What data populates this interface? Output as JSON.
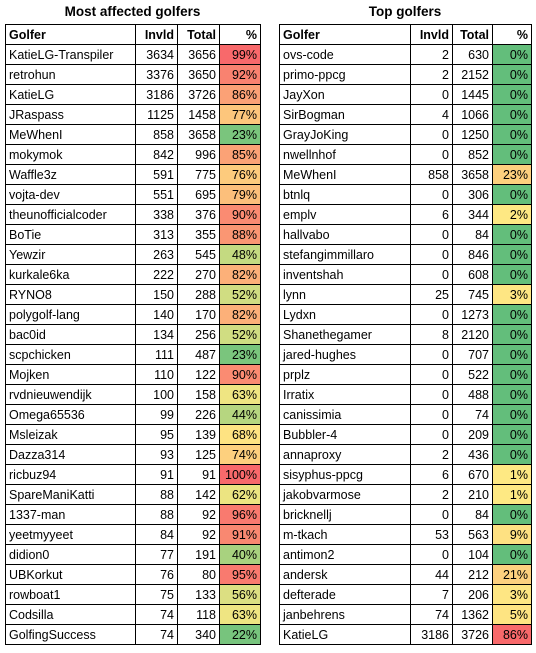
{
  "left": {
    "title": "Most affected golfers",
    "headers": [
      "Golfer",
      "Invld",
      "Total",
      "%"
    ],
    "rows": [
      [
        "KatieLG-Transpiler",
        "3634",
        "3656",
        "99%",
        "#f8696b"
      ],
      [
        "retrohun",
        "3376",
        "3650",
        "92%",
        "#f98270"
      ],
      [
        "KatieLG",
        "3186",
        "3726",
        "86%",
        "#fba176"
      ],
      [
        "JRaspass",
        "1125",
        "1458",
        "77%",
        "#fdc67c"
      ],
      [
        "MeWhenI",
        "858",
        "3658",
        "23%",
        "#7ac57d"
      ],
      [
        "mokymok",
        "842",
        "996",
        "85%",
        "#fba276"
      ],
      [
        "Waffle3z",
        "591",
        "775",
        "76%",
        "#fdcb7d"
      ],
      [
        "vojta-dev",
        "551",
        "695",
        "79%",
        "#fcbf7b"
      ],
      [
        "theunofficialcoder",
        "338",
        "376",
        "90%",
        "#fa8b72"
      ],
      [
        "BoTie",
        "313",
        "355",
        "88%",
        "#fa9673"
      ],
      [
        "Yewzir",
        "263",
        "545",
        "48%",
        "#c4da81"
      ],
      [
        "kurkale6ka",
        "222",
        "270",
        "82%",
        "#fcb079"
      ],
      [
        "RYNO8",
        "150",
        "288",
        "52%",
        "#d0dd82"
      ],
      [
        "polygolf-lang",
        "140",
        "170",
        "82%",
        "#fcb079"
      ],
      [
        "bac0id",
        "134",
        "256",
        "52%",
        "#d0dd82"
      ],
      [
        "scpchicken",
        "111",
        "487",
        "23%",
        "#7ac57d"
      ],
      [
        "Mojken",
        "110",
        "122",
        "90%",
        "#fa8b72"
      ],
      [
        "rvdnieuwendijk",
        "100",
        "158",
        "63%",
        "#efe582"
      ],
      [
        "Omega65536",
        "99",
        "226",
        "44%",
        "#b6d680"
      ],
      [
        "Msleizak",
        "95",
        "139",
        "68%",
        "#fee382"
      ],
      [
        "Dazza314",
        "93",
        "125",
        "74%",
        "#fdd07e"
      ],
      [
        "ricbuz94",
        "91",
        "91",
        "100%",
        "#f8696b"
      ],
      [
        "SpareManiKatti",
        "88",
        "142",
        "62%",
        "#ece481"
      ],
      [
        "1337-man",
        "88",
        "92",
        "96%",
        "#f97a6f"
      ],
      [
        "yeetmyyeet",
        "84",
        "92",
        "91%",
        "#f98871"
      ],
      [
        "didion0",
        "77",
        "191",
        "40%",
        "#a8d27f"
      ],
      [
        "UBKorkut",
        "76",
        "80",
        "95%",
        "#f97a6f"
      ],
      [
        "rowboat1",
        "75",
        "133",
        "56%",
        "#dcdf82"
      ],
      [
        "Codsilla",
        "74",
        "118",
        "63%",
        "#efe582"
      ],
      [
        "GolfingSuccess",
        "74",
        "340",
        "22%",
        "#77c47d"
      ]
    ]
  },
  "right": {
    "title": "Top golfers",
    "headers": [
      "Golfer",
      "Invld",
      "Total",
      "%"
    ],
    "rows": [
      [
        "ovs-code",
        "2",
        "630",
        "0%",
        "#63be7b"
      ],
      [
        "primo-ppcg",
        "2",
        "2152",
        "0%",
        "#63be7b"
      ],
      [
        "JayXon",
        "0",
        "1445",
        "0%",
        "#63be7b"
      ],
      [
        "SirBogman",
        "4",
        "1066",
        "0%",
        "#63be7b"
      ],
      [
        "GrayJoKing",
        "0",
        "1250",
        "0%",
        "#63be7b"
      ],
      [
        "nwellnhof",
        "0",
        "852",
        "0%",
        "#63be7b"
      ],
      [
        "MeWhenI",
        "858",
        "3658",
        "23%",
        "#fdd07e"
      ],
      [
        "btnlq",
        "0",
        "306",
        "0%",
        "#63be7b"
      ],
      [
        "emplv",
        "6",
        "344",
        "2%",
        "#fee883"
      ],
      [
        "hallvabo",
        "0",
        "84",
        "0%",
        "#63be7b"
      ],
      [
        "stefangimmillaro",
        "0",
        "846",
        "0%",
        "#63be7b"
      ],
      [
        "inventshah",
        "0",
        "608",
        "0%",
        "#63be7b"
      ],
      [
        "lynn",
        "25",
        "745",
        "3%",
        "#fee683"
      ],
      [
        "Lydxn",
        "0",
        "1273",
        "0%",
        "#63be7b"
      ],
      [
        "Shanethegamer",
        "8",
        "2120",
        "0%",
        "#63be7b"
      ],
      [
        "jared-hughes",
        "0",
        "707",
        "0%",
        "#63be7b"
      ],
      [
        "prplz",
        "0",
        "522",
        "0%",
        "#63be7b"
      ],
      [
        "Irratix",
        "0",
        "488",
        "0%",
        "#63be7b"
      ],
      [
        "canissimia",
        "0",
        "74",
        "0%",
        "#63be7b"
      ],
      [
        "Bubbler-4",
        "0",
        "209",
        "0%",
        "#63be7b"
      ],
      [
        "annaproxy",
        "2",
        "436",
        "0%",
        "#63be7b"
      ],
      [
        "sisyphus-ppcg",
        "6",
        "670",
        "1%",
        "#fee983"
      ],
      [
        "jakobvarmose",
        "2",
        "210",
        "1%",
        "#fee983"
      ],
      [
        "bricknellj",
        "0",
        "84",
        "0%",
        "#63be7b"
      ],
      [
        "m-tkach",
        "53",
        "563",
        "9%",
        "#fee182"
      ],
      [
        "antimon2",
        "0",
        "104",
        "0%",
        "#63be7b"
      ],
      [
        "andersk",
        "44",
        "212",
        "21%",
        "#fdd17f"
      ],
      [
        "defterade",
        "7",
        "206",
        "3%",
        "#fee683"
      ],
      [
        "janbehrens",
        "74",
        "1362",
        "5%",
        "#fee482"
      ],
      [
        "KatieLG",
        "3186",
        "3726",
        "86%",
        "#f8696b"
      ]
    ]
  }
}
